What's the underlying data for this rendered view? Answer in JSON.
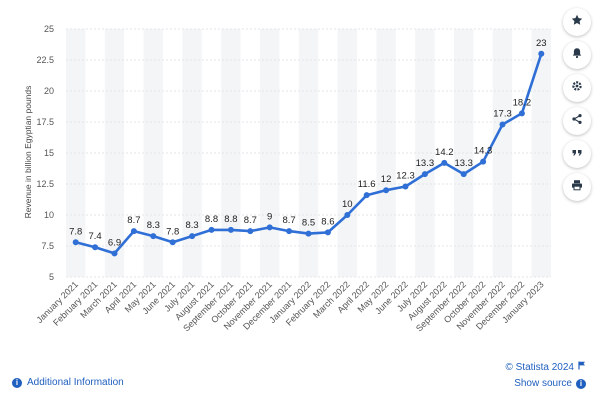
{
  "chart_data": {
    "type": "line",
    "categories": [
      "January 2021",
      "February 2021",
      "March 2021",
      "April 2021",
      "May 2021",
      "June 2021",
      "July 2021",
      "August 2021",
      "September 2021",
      "October 2021",
      "November 2021",
      "December 2021",
      "January 2022",
      "February 2022",
      "March 2022",
      "April 2022",
      "May 2022",
      "June 2022",
      "July 2022",
      "August 2022",
      "September 2022",
      "October 2022",
      "November 2022",
      "December 2022",
      "January 2023"
    ],
    "values": [
      7.8,
      7.4,
      6.9,
      8.7,
      8.3,
      7.8,
      8.3,
      8.8,
      8.8,
      8.7,
      9,
      8.7,
      8.5,
      8.6,
      10,
      11.6,
      12,
      12.3,
      13.3,
      14.2,
      13.3,
      14.3,
      17.3,
      18.2,
      23
    ],
    "data_labels": [
      "7.8",
      "7.4",
      "6.9",
      "8.7",
      "8.3",
      "7.8",
      "8.3",
      "8.8",
      "8.8",
      "8.7",
      "9",
      "8.7",
      "8.5",
      "8.6",
      "10",
      "11.6",
      "12",
      "12.3",
      "13.3",
      "14.2",
      "13.3",
      "14.3",
      "17.3",
      "18.2",
      "23"
    ],
    "ylabel": "Revenue in billion Egyptian pounds",
    "xlabel": "",
    "ylim": [
      5,
      25
    ],
    "yticks": [
      5,
      7.5,
      10,
      12.5,
      15,
      17.5,
      20,
      22.5,
      25
    ],
    "ytick_labels": [
      "5",
      "7.5",
      "10",
      "12.5",
      "15",
      "17.5",
      "20",
      "22.5",
      "25"
    ],
    "grid": true,
    "line_color": "#2f6fd6"
  },
  "toolbar": {
    "icons": [
      "star-icon",
      "bell-icon",
      "gear-icon",
      "share-icon",
      "quote-icon",
      "print-icon"
    ]
  },
  "footer": {
    "additional_info": "Additional Information",
    "copyright": "© Statista 2024",
    "show_source": "Show source"
  }
}
